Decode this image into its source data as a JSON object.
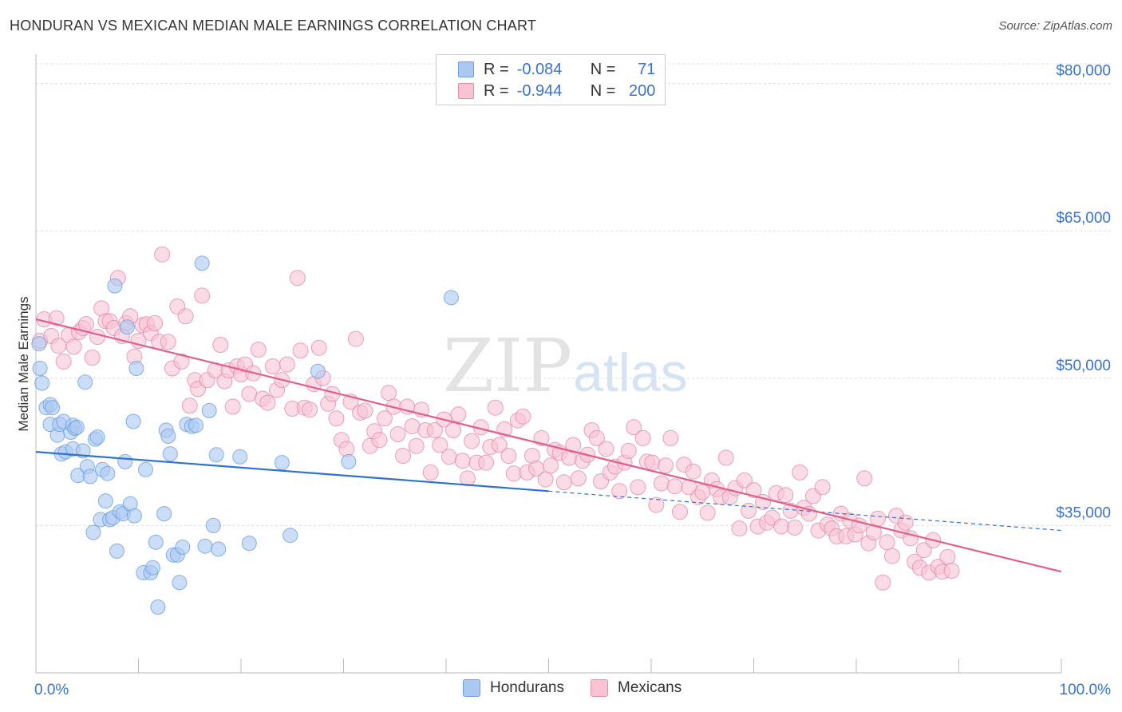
{
  "title": "HONDURAN VS MEXICAN MEDIAN MALE EARNINGS CORRELATION CHART",
  "source": "Source: ZipAtlas.com",
  "watermark": {
    "zip": "ZIP",
    "atlas": "atlas"
  },
  "legend": {
    "r_label": "R =",
    "n_label": "N =",
    "rows": [
      {
        "r": "-0.084",
        "n": "71",
        "color": "#aac8f2",
        "border": "#6a9fe0"
      },
      {
        "r": "-0.944",
        "n": "200",
        "color": "#f9c3d3",
        "border": "#e58ca8"
      }
    ]
  },
  "bottom_legend": [
    "Hondurans",
    "Mexicans"
  ],
  "chart_data": {
    "type": "scatter",
    "title": "HONDURAN VS MEXICAN MEDIAN MALE EARNINGS CORRELATION CHART",
    "xlabel": "",
    "ylabel": "Median Male Earnings",
    "xlim": [
      0,
      100
    ],
    "ylim": [
      20000,
      82000
    ],
    "x_tick_labels": [
      "0.0%",
      "100.0%"
    ],
    "y_ticks": [
      35000,
      50000,
      65000,
      80000
    ],
    "y_tick_labels": [
      "$35,000",
      "$50,000",
      "$65,000",
      "$80,000"
    ],
    "grid": true,
    "legend_position": "top-center",
    "series": [
      {
        "name": "Hondurans",
        "color": "#6a9fe0",
        "fill": "#aac8f2",
        "line_color": "#2f72d1",
        "trend": {
          "x0": 0,
          "y0": 42500,
          "x1": 50,
          "y1": 38500,
          "x_dash_end": 100,
          "y_dash_end": 34500
        },
        "points": [
          [
            0.3,
            53500
          ],
          [
            0.4,
            51000
          ],
          [
            0.6,
            49500
          ],
          [
            1.0,
            47000
          ],
          [
            1.4,
            47300
          ],
          [
            1.4,
            45300
          ],
          [
            1.6,
            47000
          ],
          [
            2.1,
            44200
          ],
          [
            2.3,
            45300
          ],
          [
            2.5,
            42300
          ],
          [
            2.7,
            45600
          ],
          [
            2.9,
            42500
          ],
          [
            3.4,
            44500
          ],
          [
            3.6,
            45200
          ],
          [
            3.6,
            42800
          ],
          [
            3.8,
            44900
          ],
          [
            4.1,
            40100
          ],
          [
            4.6,
            42600
          ],
          [
            4.8,
            49600
          ],
          [
            5.0,
            41000
          ],
          [
            5.3,
            40000
          ],
          [
            5.6,
            34300
          ],
          [
            5.8,
            43800
          ],
          [
            6.0,
            44000
          ],
          [
            6.3,
            35600
          ],
          [
            6.5,
            40700
          ],
          [
            6.8,
            37500
          ],
          [
            7.0,
            40300
          ],
          [
            7.2,
            35600
          ],
          [
            7.5,
            35800
          ],
          [
            7.7,
            59400
          ],
          [
            7.9,
            32400
          ],
          [
            8.2,
            36400
          ],
          [
            8.5,
            36200
          ],
          [
            8.7,
            41500
          ],
          [
            8.9,
            55200
          ],
          [
            9.2,
            37200
          ],
          [
            9.5,
            45600
          ],
          [
            9.6,
            36000
          ],
          [
            9.8,
            51000
          ],
          [
            10.5,
            30200
          ],
          [
            10.7,
            40700
          ],
          [
            11.2,
            30200
          ],
          [
            11.4,
            30700
          ],
          [
            11.7,
            33300
          ],
          [
            12.5,
            36200
          ],
          [
            12.7,
            44700
          ],
          [
            12.9,
            44100
          ],
          [
            13.1,
            42300
          ],
          [
            13.4,
            32000
          ],
          [
            13.8,
            32000
          ],
          [
            14.0,
            29200
          ],
          [
            14.3,
            32800
          ],
          [
            14.7,
            45300
          ],
          [
            15.2,
            45100
          ],
          [
            15.6,
            45200
          ],
          [
            16.2,
            61700
          ],
          [
            16.5,
            32900
          ],
          [
            16.9,
            46700
          ],
          [
            17.3,
            35000
          ],
          [
            17.6,
            42200
          ],
          [
            17.8,
            32600
          ],
          [
            11.9,
            26700
          ],
          [
            19.9,
            42000
          ],
          [
            20.8,
            33200
          ],
          [
            24.0,
            41400
          ],
          [
            24.8,
            34000
          ],
          [
            27.5,
            50700
          ],
          [
            30.5,
            41500
          ],
          [
            40.5,
            58200
          ],
          [
            4.0,
            45000
          ]
        ]
      },
      {
        "name": "Mexicans",
        "color": "#e58ca8",
        "fill": "#f9c3d3",
        "line_color": "#e0608a",
        "trend": {
          "x0": 0,
          "y0": 56000,
          "x1": 100,
          "y1": 30300
        },
        "points": [
          [
            0.4,
            53800
          ],
          [
            0.8,
            56000
          ],
          [
            1.5,
            54300
          ],
          [
            2.0,
            56100
          ],
          [
            2.2,
            53300
          ],
          [
            2.7,
            51700
          ],
          [
            3.2,
            54400
          ],
          [
            3.7,
            53200
          ],
          [
            4.2,
            54700
          ],
          [
            4.6,
            55100
          ],
          [
            4.9,
            55500
          ],
          [
            5.5,
            52100
          ],
          [
            6.0,
            54200
          ],
          [
            6.4,
            57100
          ],
          [
            6.8,
            55800
          ],
          [
            7.2,
            55800
          ],
          [
            7.6,
            55100
          ],
          [
            8.0,
            60200
          ],
          [
            8.4,
            54300
          ],
          [
            8.8,
            55600
          ],
          [
            9.2,
            56300
          ],
          [
            9.6,
            52200
          ],
          [
            10.0,
            53800
          ],
          [
            10.4,
            55400
          ],
          [
            10.8,
            55500
          ],
          [
            11.2,
            54600
          ],
          [
            11.6,
            55600
          ],
          [
            12.0,
            53700
          ],
          [
            12.3,
            62600
          ],
          [
            12.9,
            53700
          ],
          [
            13.3,
            51000
          ],
          [
            13.8,
            57300
          ],
          [
            14.2,
            51700
          ],
          [
            14.6,
            56300
          ],
          [
            15.0,
            47200
          ],
          [
            15.5,
            49800
          ],
          [
            15.8,
            48900
          ],
          [
            16.2,
            58400
          ],
          [
            16.7,
            49800
          ],
          [
            17.5,
            50800
          ],
          [
            18.0,
            53400
          ],
          [
            18.4,
            49700
          ],
          [
            18.8,
            50800
          ],
          [
            19.2,
            47100
          ],
          [
            19.6,
            51200
          ],
          [
            20.0,
            50400
          ],
          [
            20.4,
            51400
          ],
          [
            20.8,
            48400
          ],
          [
            21.2,
            50500
          ],
          [
            21.7,
            52900
          ],
          [
            22.1,
            47900
          ],
          [
            22.6,
            47500
          ],
          [
            23.1,
            51200
          ],
          [
            23.5,
            48800
          ],
          [
            24.0,
            49800
          ],
          [
            24.5,
            51400
          ],
          [
            25.0,
            46900
          ],
          [
            25.5,
            60200
          ],
          [
            25.8,
            52800
          ],
          [
            26.2,
            47000
          ],
          [
            26.7,
            46800
          ],
          [
            27.1,
            49400
          ],
          [
            27.6,
            53100
          ],
          [
            28.0,
            50000
          ],
          [
            28.5,
            47400
          ],
          [
            28.9,
            48400
          ],
          [
            29.3,
            45900
          ],
          [
            29.8,
            43700
          ],
          [
            30.3,
            42800
          ],
          [
            30.7,
            47600
          ],
          [
            31.2,
            54000
          ],
          [
            31.6,
            46500
          ],
          [
            32.1,
            46700
          ],
          [
            32.6,
            43100
          ],
          [
            33.0,
            44600
          ],
          [
            33.5,
            43700
          ],
          [
            34.0,
            45900
          ],
          [
            34.4,
            48500
          ],
          [
            34.9,
            47100
          ],
          [
            35.3,
            44300
          ],
          [
            35.8,
            42100
          ],
          [
            36.2,
            47100
          ],
          [
            36.7,
            45100
          ],
          [
            37.1,
            43100
          ],
          [
            37.6,
            46800
          ],
          [
            38.0,
            44700
          ],
          [
            38.5,
            40400
          ],
          [
            38.9,
            44700
          ],
          [
            39.4,
            43200
          ],
          [
            39.8,
            45800
          ],
          [
            40.3,
            42000
          ],
          [
            40.7,
            44700
          ],
          [
            41.2,
            46300
          ],
          [
            41.6,
            41600
          ],
          [
            42.1,
            39800
          ],
          [
            42.5,
            43600
          ],
          [
            43.0,
            41400
          ],
          [
            43.4,
            45000
          ],
          [
            43.9,
            41400
          ],
          [
            44.3,
            43000
          ],
          [
            44.8,
            47000
          ],
          [
            45.2,
            43200
          ],
          [
            45.7,
            44800
          ],
          [
            46.1,
            42100
          ],
          [
            46.6,
            40300
          ],
          [
            47.0,
            45700
          ],
          [
            47.5,
            46100
          ],
          [
            47.9,
            40400
          ],
          [
            48.4,
            42100
          ],
          [
            48.8,
            40800
          ],
          [
            49.3,
            43900
          ],
          [
            49.7,
            39700
          ],
          [
            50.2,
            41100
          ],
          [
            50.6,
            42700
          ],
          [
            51.1,
            42400
          ],
          [
            51.5,
            39400
          ],
          [
            52.0,
            41900
          ],
          [
            52.4,
            43200
          ],
          [
            52.9,
            39800
          ],
          [
            53.3,
            41600
          ],
          [
            53.8,
            42200
          ],
          [
            54.2,
            44700
          ],
          [
            54.7,
            43900
          ],
          [
            55.1,
            39500
          ],
          [
            55.6,
            42800
          ],
          [
            56.0,
            40400
          ],
          [
            56.5,
            41000
          ],
          [
            56.9,
            38500
          ],
          [
            57.4,
            41400
          ],
          [
            57.8,
            42600
          ],
          [
            58.3,
            45000
          ],
          [
            58.7,
            38900
          ],
          [
            59.2,
            43900
          ],
          [
            59.6,
            41500
          ],
          [
            60.1,
            41400
          ],
          [
            60.5,
            37100
          ],
          [
            61.0,
            39300
          ],
          [
            61.4,
            41100
          ],
          [
            61.9,
            43900
          ],
          [
            62.3,
            39000
          ],
          [
            62.8,
            36400
          ],
          [
            63.2,
            41200
          ],
          [
            63.7,
            38900
          ],
          [
            64.1,
            40500
          ],
          [
            64.6,
            37900
          ],
          [
            65.0,
            38400
          ],
          [
            65.5,
            36300
          ],
          [
            65.9,
            39600
          ],
          [
            66.4,
            38700
          ],
          [
            66.8,
            37900
          ],
          [
            67.3,
            41900
          ],
          [
            67.7,
            37900
          ],
          [
            68.2,
            38800
          ],
          [
            68.6,
            34700
          ],
          [
            69.1,
            39600
          ],
          [
            69.5,
            36500
          ],
          [
            70.0,
            38600
          ],
          [
            70.4,
            34900
          ],
          [
            70.9,
            37400
          ],
          [
            71.3,
            35300
          ],
          [
            71.8,
            35800
          ],
          [
            72.2,
            38300
          ],
          [
            72.7,
            34900
          ],
          [
            73.1,
            38100
          ],
          [
            73.6,
            36500
          ],
          [
            74.0,
            34800
          ],
          [
            74.5,
            40400
          ],
          [
            74.9,
            36800
          ],
          [
            75.4,
            36200
          ],
          [
            75.8,
            38000
          ],
          [
            76.3,
            34500
          ],
          [
            76.7,
            38900
          ],
          [
            77.2,
            35100
          ],
          [
            77.6,
            34700
          ],
          [
            78.1,
            33900
          ],
          [
            78.5,
            36200
          ],
          [
            79.0,
            33900
          ],
          [
            79.4,
            35500
          ],
          [
            79.9,
            34100
          ],
          [
            80.3,
            35000
          ],
          [
            80.8,
            39800
          ],
          [
            81.2,
            33200
          ],
          [
            81.7,
            34300
          ],
          [
            82.1,
            35700
          ],
          [
            82.6,
            29200
          ],
          [
            83.0,
            33300
          ],
          [
            83.5,
            31900
          ],
          [
            83.9,
            36000
          ],
          [
            84.4,
            34500
          ],
          [
            84.8,
            35300
          ],
          [
            85.3,
            33700
          ],
          [
            85.7,
            31300
          ],
          [
            86.2,
            30700
          ],
          [
            86.6,
            32500
          ],
          [
            87.1,
            30200
          ],
          [
            87.5,
            33500
          ],
          [
            88.0,
            30800
          ],
          [
            88.4,
            30300
          ],
          [
            88.9,
            31800
          ],
          [
            89.3,
            30400
          ]
        ]
      }
    ]
  }
}
